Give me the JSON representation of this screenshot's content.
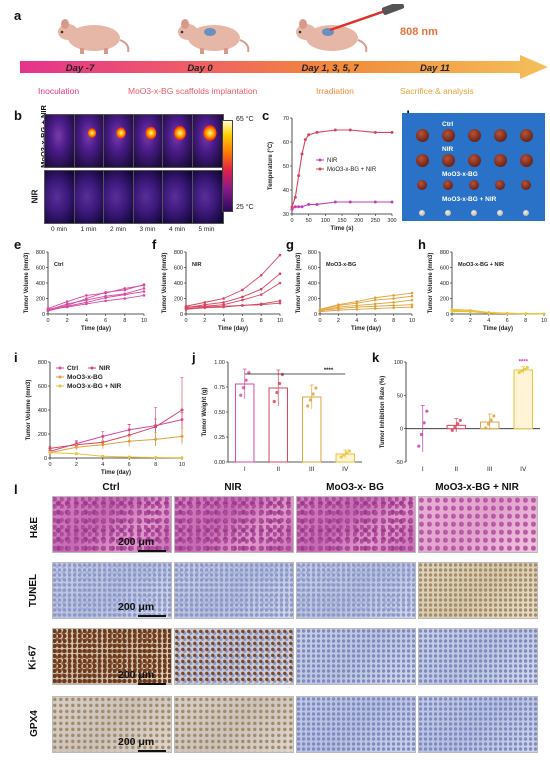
{
  "panel_labels": {
    "a": "a",
    "b": "b",
    "c": "c",
    "d": "d",
    "e": "e",
    "f": "f",
    "g": "g",
    "h": "h",
    "i": "i",
    "j": "j",
    "k": "k",
    "l": "l"
  },
  "timeline": {
    "laser": "808 nm",
    "days": [
      "Day -7",
      "Day 0",
      "Day 1, 3, 5, 7",
      "Day 11"
    ],
    "stages": [
      "Inoculation",
      "MoO3-x-BG scaffolds implantation",
      "Irradiation",
      "Sacrifice & analysis"
    ],
    "colors": [
      "#e8398a",
      "#f0714a",
      "#f29a35",
      "#f4c05a"
    ]
  },
  "thermal": {
    "row1_label": "MoO3-x-BG + NIR",
    "row2_label": "NIR",
    "times": [
      "0 min",
      "1 min",
      "2 min",
      "3 min",
      "4 min",
      "5 min"
    ],
    "cbar_max": "65 °C",
    "cbar_min": "25 °C"
  },
  "tumor_photo": {
    "labels": [
      "Ctrl",
      "NIR",
      "MoO3-x-BG",
      "MoO3-x-BG + NIR"
    ]
  },
  "histology": {
    "columns": [
      "Ctrl",
      "NIR",
      "MoO3-x- BG",
      "MoO3-x-BG + NIR"
    ],
    "rows": [
      "H&E",
      "TUNEL",
      "Ki-67",
      "GPX4"
    ],
    "scale": "200 μm"
  },
  "chart_data": [
    {
      "panel": "c",
      "type": "line",
      "xlabel": "Time (s)",
      "ylabel": "Temperature (°C)",
      "xlim": [
        0,
        300
      ],
      "ylim": [
        30,
        70
      ],
      "xticks": [
        0,
        50,
        100,
        150,
        200,
        250,
        300
      ],
      "yticks": [
        30,
        40,
        50,
        60,
        70
      ],
      "legend_position": "center-right",
      "series": [
        {
          "name": "NIR",
          "color": "#c23fb4",
          "x": [
            0,
            10,
            20,
            30,
            50,
            75,
            130,
            175,
            250,
            300
          ],
          "y": [
            32,
            33,
            33,
            33,
            34,
            34,
            35,
            35,
            35,
            35
          ]
        },
        {
          "name": "MoO3-x-BG + NIR",
          "color": "#d9445e",
          "x": [
            0,
            10,
            20,
            30,
            40,
            50,
            75,
            130,
            175,
            250,
            300
          ],
          "y": [
            33,
            37,
            46,
            55,
            61,
            63,
            64,
            65,
            65,
            64,
            64
          ]
        }
      ]
    },
    {
      "panel": "e",
      "type": "line",
      "title": "Ctrl",
      "xlabel": "Time (day)",
      "ylabel": "Tumor Volume (mm3)",
      "xlim": [
        0,
        10
      ],
      "ylim": [
        0,
        800
      ],
      "xticks": [
        0,
        2,
        4,
        6,
        8,
        10
      ],
      "yticks": [
        0,
        200,
        400,
        600,
        800
      ],
      "color": "#d84aa0",
      "x": [
        0,
        2,
        4,
        6,
        8,
        10
      ],
      "series": [
        {
          "values": [
            60,
            110,
            200,
            280,
            310,
            380
          ]
        },
        {
          "values": [
            50,
            130,
            180,
            230,
            260,
            330
          ]
        },
        {
          "values": [
            70,
            160,
            240,
            270,
            330,
            370
          ]
        },
        {
          "values": [
            40,
            100,
            150,
            210,
            250,
            290
          ]
        },
        {
          "values": [
            55,
            90,
            130,
            170,
            200,
            240
          ]
        }
      ]
    },
    {
      "panel": "f",
      "type": "line",
      "title": "NIR",
      "xlabel": "Time (day)",
      "ylabel": "Tumor Volume (mm3)",
      "xlim": [
        0,
        10
      ],
      "ylim": [
        0,
        800
      ],
      "xticks": [
        0,
        2,
        4,
        6,
        8,
        10
      ],
      "yticks": [
        0,
        200,
        400,
        600,
        800
      ],
      "color": "#d9445e",
      "x": [
        0,
        2,
        4,
        6,
        8,
        10
      ],
      "series": [
        {
          "values": [
            100,
            150,
            200,
            310,
            500,
            760
          ]
        },
        {
          "values": [
            80,
            120,
            150,
            220,
            320,
            520
          ]
        },
        {
          "values": [
            90,
            100,
            120,
            180,
            250,
            400
          ]
        },
        {
          "values": [
            60,
            80,
            90,
            110,
            130,
            170
          ]
        },
        {
          "values": [
            70,
            90,
            100,
            110,
            120,
            140
          ]
        }
      ]
    },
    {
      "panel": "g",
      "type": "line",
      "title": "MoO3-x-BG",
      "xlabel": "Time (day)",
      "ylabel": "Tumor Volume (mm3)",
      "xlim": [
        0,
        10
      ],
      "ylim": [
        0,
        800
      ],
      "xticks": [
        0,
        2,
        4,
        6,
        8,
        10
      ],
      "yticks": [
        0,
        200,
        400,
        600,
        800
      ],
      "color": "#e0a23c",
      "x": [
        0,
        2,
        4,
        6,
        8,
        10
      ],
      "series": [
        {
          "values": [
            60,
            120,
            160,
            210,
            240,
            270
          ]
        },
        {
          "values": [
            50,
            110,
            140,
            180,
            200,
            230
          ]
        },
        {
          "values": [
            40,
            90,
            110,
            130,
            150,
            180
          ]
        },
        {
          "values": [
            45,
            70,
            90,
            100,
            110,
            120
          ]
        },
        {
          "values": [
            30,
            50,
            60,
            70,
            80,
            90
          ]
        }
      ]
    },
    {
      "panel": "h",
      "type": "line",
      "title": "MoO3-x-BG + NIR",
      "xlabel": "Time (day)",
      "ylabel": "Tumor Volume (mm3)",
      "xlim": [
        0,
        10
      ],
      "ylim": [
        0,
        800
      ],
      "xticks": [
        0,
        2,
        4,
        6,
        8,
        10
      ],
      "yticks": [
        0,
        200,
        400,
        600,
        800
      ],
      "color": "#e8c23a",
      "x": [
        0,
        2,
        4,
        6,
        8,
        10
      ],
      "series": [
        {
          "values": [
            60,
            50,
            20,
            10,
            5,
            3
          ]
        },
        {
          "values": [
            40,
            35,
            15,
            8,
            4,
            2
          ]
        },
        {
          "values": [
            30,
            30,
            12,
            6,
            3,
            2
          ]
        },
        {
          "values": [
            50,
            40,
            18,
            9,
            5,
            3
          ]
        },
        {
          "values": [
            45,
            30,
            10,
            5,
            2,
            1
          ]
        }
      ]
    },
    {
      "panel": "i",
      "type": "line",
      "xlabel": "Time (day)",
      "ylabel": "Tumor Volume (mm3)",
      "xlim": [
        0,
        10
      ],
      "ylim": [
        0,
        800
      ],
      "xticks": [
        0,
        2,
        4,
        6,
        8,
        10
      ],
      "yticks": [
        0,
        200,
        400,
        600,
        800
      ],
      "legend_position": "top-left",
      "x": [
        0,
        2,
        4,
        6,
        8,
        10
      ],
      "series": [
        {
          "name": "Ctrl",
          "color": "#d84aa0",
          "values": [
            55,
            120,
            180,
            235,
            270,
            320
          ],
          "err": [
            10,
            25,
            40,
            45,
            55,
            60
          ]
        },
        {
          "name": "NIR",
          "color": "#d9445e",
          "values": [
            80,
            110,
            130,
            190,
            260,
            400
          ],
          "err": [
            15,
            30,
            50,
            90,
            160,
            270
          ]
        },
        {
          "name": "MoO3-x-BG",
          "color": "#e0a23c",
          "values": [
            45,
            90,
            110,
            140,
            155,
            180
          ],
          "err": [
            10,
            25,
            35,
            45,
            55,
            70
          ]
        },
        {
          "name": "MoO3-x-BG + NIR",
          "color": "#e8c23a",
          "values": [
            45,
            35,
            15,
            8,
            4,
            2
          ],
          "err": [
            10,
            8,
            5,
            3,
            2,
            1
          ]
        }
      ]
    },
    {
      "panel": "j",
      "type": "bar",
      "ylabel": "Tumor Weight (g)",
      "categories": [
        "I",
        "II",
        "III",
        "IV"
      ],
      "values": [
        0.78,
        0.74,
        0.65,
        0.08
      ],
      "errors": [
        0.15,
        0.18,
        0.12,
        0.04
      ],
      "colors": [
        "#d84aa0",
        "#d9445e",
        "#e0a23c",
        "#e8c23a"
      ],
      "ylim": [
        0,
        1.0
      ],
      "yticks": [
        0.0,
        0.25,
        0.5,
        0.75,
        1.0
      ],
      "significance": "****"
    },
    {
      "panel": "k",
      "type": "bar",
      "ylabel": "Tumor Inhibition Rate (%)",
      "categories": [
        "I",
        "II",
        "III",
        "IV"
      ],
      "values": [
        0,
        5,
        10,
        88
      ],
      "errors": [
        35,
        10,
        12,
        5
      ],
      "colors": [
        "#c23fb4",
        "#d9445e",
        "#e0a23c",
        "#e8c23a"
      ],
      "ylim": [
        -50,
        100
      ],
      "yticks": [
        -50,
        0,
        50,
        100
      ],
      "significance": "****"
    }
  ]
}
